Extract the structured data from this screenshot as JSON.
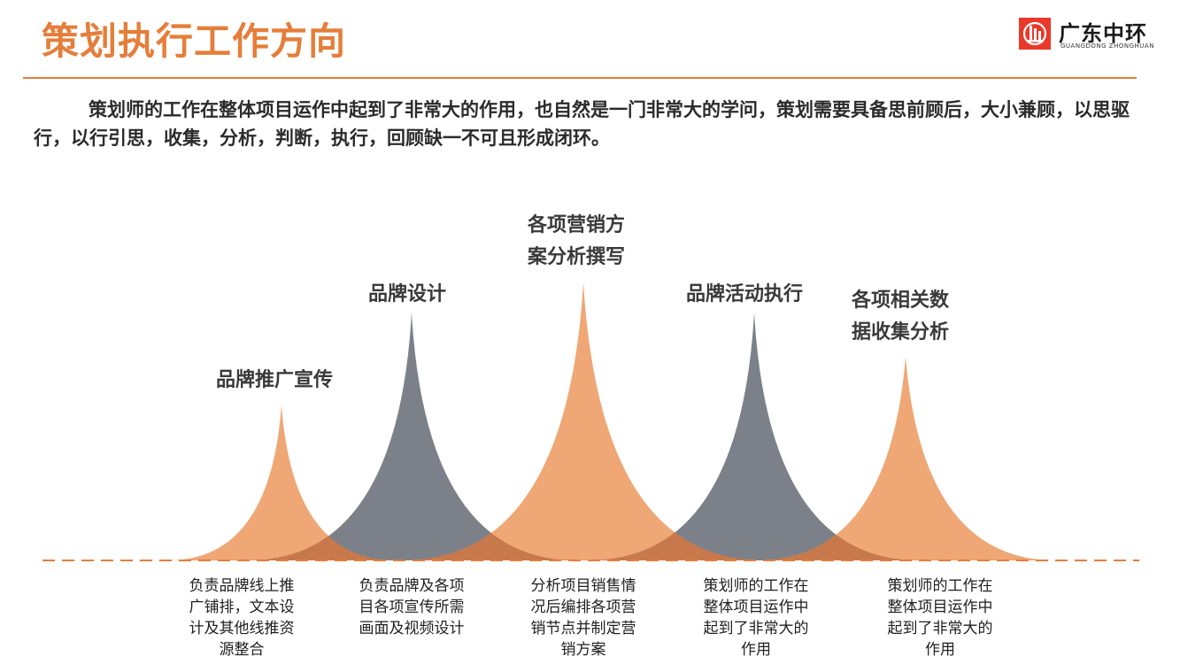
{
  "title": "策划执行工作方向",
  "logo": {
    "icon": "company-logo-icon",
    "name_cn": "广东中环",
    "name_en": "GUANGDONG ZHONGHUAN",
    "brand_color": "#E8392B"
  },
  "intro": {
    "text": "策划师的工作在整体项目运作中起到了非常大的作用，也自然是一门非常大的学问，策划需要具备思前顾后，大小兼顾，以思驱行，以行引思，收集，分析，判断，执行，回顾缺一不可且形成闭环。"
  },
  "colors": {
    "accent": "#E57E3A",
    "peak_orange": "#EFA775",
    "peak_gray": "#7C8189",
    "overlap": "#C7794C"
  },
  "peaks": [
    {
      "label_lines": [
        "品牌推广宣传"
      ],
      "desc_lines": [
        "负责品牌线上推",
        "广铺排，文本设",
        "计及其他线推资",
        "源整合"
      ],
      "color": "orange"
    },
    {
      "label_lines": [
        "品牌设计"
      ],
      "desc_lines": [
        "负责品牌及各项",
        "目各项宣传所需",
        "画面及视频设计"
      ],
      "color": "gray"
    },
    {
      "label_lines": [
        "各项营销方",
        "案分析撰写"
      ],
      "desc_lines": [
        "分析项目销售情",
        "况后编排各项营",
        "销节点并制定营",
        "销方案"
      ],
      "color": "orange"
    },
    {
      "label_lines": [
        "品牌活动执行"
      ],
      "desc_lines": [
        "策划师的工作在",
        "整体项目运作中",
        "起到了非常大的",
        "作用"
      ],
      "color": "gray"
    },
    {
      "label_lines": [
        "各项相关数",
        "据收集分析"
      ],
      "desc_lines": [
        "策划师的工作在",
        "整体项目运作中",
        "起到了非常大的",
        "作用"
      ],
      "color": "orange"
    }
  ]
}
